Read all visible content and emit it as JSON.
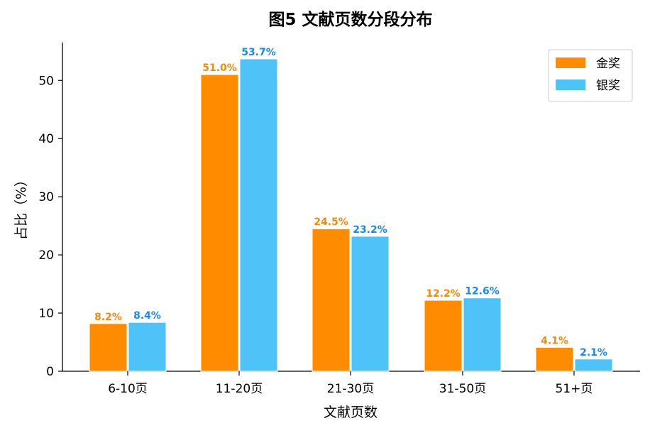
{
  "chart_data": {
    "type": "bar",
    "title": "图5  文献页数分段分布",
    "xlabel": "文献页数",
    "ylabel": "占比（%）",
    "categories": [
      "6-10页",
      "11-20页",
      "21-30页",
      "31-50页",
      "51+页"
    ],
    "series": [
      {
        "name": "金奖",
        "values": [
          8.2,
          51.0,
          24.5,
          12.2,
          4.1
        ],
        "labels": [
          "8.2%",
          "51.0%",
          "24.5%",
          "12.2%",
          "4.1%"
        ],
        "color": "#FF8C00",
        "label_color": "#F28A0C"
      },
      {
        "name": "银奖",
        "values": [
          8.4,
          53.7,
          23.2,
          12.6,
          2.1
        ],
        "labels": [
          "8.4%",
          "53.7%",
          "23.2%",
          "12.6%",
          "2.1%"
        ],
        "color": "#4FC3F7",
        "label_color": "#1E88E5"
      }
    ],
    "ylim": [
      0,
      56.5
    ],
    "yticks": [
      0,
      10,
      20,
      30,
      40,
      50
    ],
    "grid": false,
    "legend": "top-right"
  }
}
